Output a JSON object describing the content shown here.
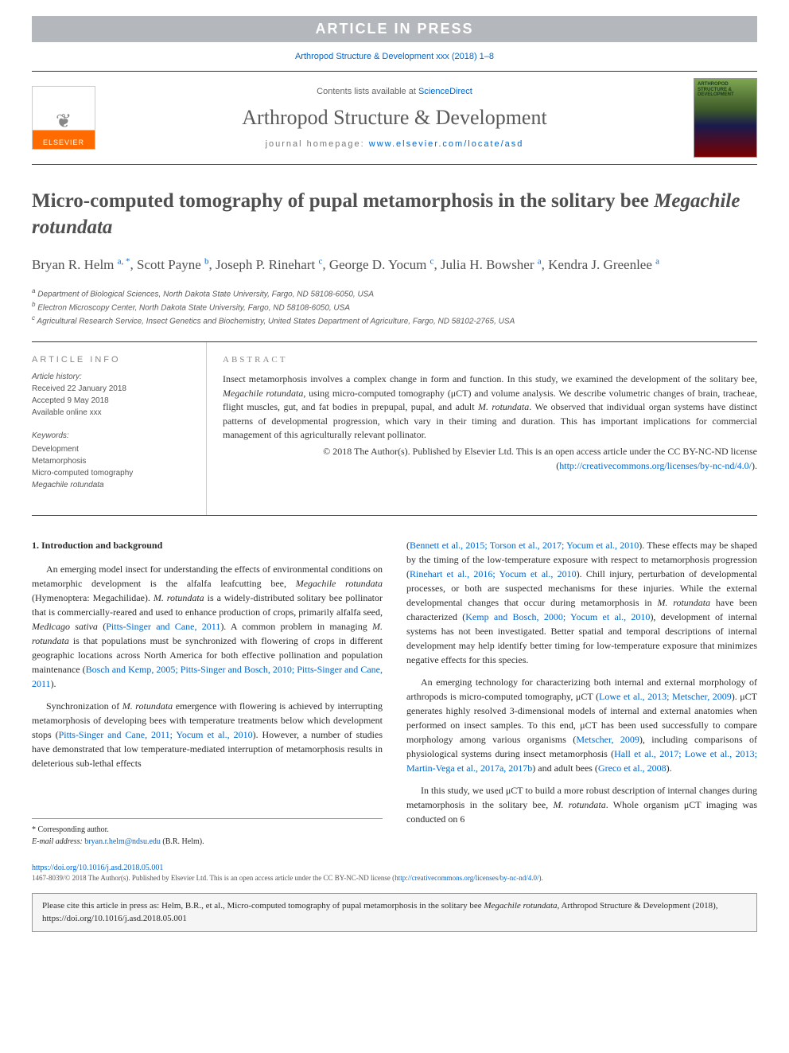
{
  "banner": "ARTICLE IN PRESS",
  "top_citation": {
    "prefix": "Arthropod Structure & Development xxx (2018) 1–8",
    "link_text": "Arthropod Structure & Development xxx (2018) 1–8"
  },
  "header": {
    "contents_prefix": "Contents lists available at ",
    "contents_link": "ScienceDirect",
    "journal": "Arthropod Structure & Development",
    "homepage_prefix": "journal homepage: ",
    "homepage_link": "www.elsevier.com/locate/asd",
    "elsevier_label": "ELSEVIER",
    "cover_label": "ARTHROPOD STRUCTURE & DEVELOPMENT"
  },
  "title": {
    "prefix": "Micro-computed tomography of pupal metamorphosis in the solitary bee ",
    "species": "Megachile rotundata"
  },
  "authors_html": "Bryan R. Helm <sup>a, *</sup>, Scott Payne <sup>b</sup>, Joseph P. Rinehart <sup>c</sup>, George D. Yocum <sup>c</sup>, Julia H. Bowsher <sup>a</sup>, Kendra J. Greenlee <sup>a</sup>",
  "affiliations": [
    {
      "sup": "a",
      "text": "Department of Biological Sciences, North Dakota State University, Fargo, ND 58108-6050, USA"
    },
    {
      "sup": "b",
      "text": "Electron Microscopy Center, North Dakota State University, Fargo, ND 58108-6050, USA"
    },
    {
      "sup": "c",
      "text": "Agricultural Research Service, Insect Genetics and Biochemistry, United States Department of Agriculture, Fargo, ND 58102-2765, USA"
    }
  ],
  "article_info": {
    "heading": "ARTICLE INFO",
    "history_label": "Article history:",
    "history": [
      "Received 22 January 2018",
      "Accepted 9 May 2018",
      "Available online xxx"
    ],
    "keywords_label": "Keywords:",
    "keywords": [
      "Development",
      "Metamorphosis",
      "Micro-computed tomography",
      "Megachile rotundata"
    ]
  },
  "abstract": {
    "heading": "ABSTRACT",
    "body_html": "Insect metamorphosis involves a complex change in form and function. In this study, we examined the development of the solitary bee, <span class=\"species\">Megachile rotundata</span>, using micro-computed tomography (μCT) and volume analysis. We describe volumetric changes of brain, tracheae, flight muscles, gut, and fat bodies in prepupal, pupal, and adult <span class=\"species\">M. rotundata</span>. We observed that individual organ systems have distinct patterns of developmental progression, which vary in their timing and duration. This has important implications for commercial management of this agriculturally relevant pollinator.",
    "copyright": "© 2018 The Author(s). Published by Elsevier Ltd. This is an open access article under the CC BY-NC-ND license (",
    "license_link": "http://creativecommons.org/licenses/by-nc-nd/4.0/",
    "copyright_suffix": ")."
  },
  "body": {
    "section_heading": "1. Introduction and background",
    "col1_paras": [
      "An emerging model insect for understanding the effects of environmental conditions on metamorphic development is the alfalfa leafcutting bee, <span class=\"species\">Megachile rotundata</span> (Hymenoptera: Megachilidae). <span class=\"species\">M. rotundata</span> is a widely-distributed solitary bee pollinator that is commercially-reared and used to enhance production of crops, primarily alfalfa seed, <span class=\"species\">Medicago sativa</span> (<a href=\"#\">Pitts-Singer and Cane, 2011</a>). A common problem in managing <span class=\"species\">M. rotundata</span> is that populations must be synchronized with flowering of crops in different geographic locations across North America for both effective pollination and population maintenance (<a href=\"#\">Bosch and Kemp, 2005; Pitts-Singer and Bosch, 2010; Pitts-Singer and Cane, 2011</a>).",
      "Synchronization of <span class=\"species\">M. rotundata</span> emergence with flowering is achieved by interrupting metamorphosis of developing bees with temperature treatments below which development stops (<a href=\"#\">Pitts-Singer and Cane, 2011; Yocum et al., 2010</a>). However, a number of studies have demonstrated that low temperature-mediated interruption of metamorphosis results in deleterious sub-lethal effects"
    ],
    "col2_paras": [
      "(<a href=\"#\">Bennett et al., 2015; Torson et al., 2017; Yocum et al., 2010</a>). These effects may be shaped by the timing of the low-temperature exposure with respect to metamorphosis progression (<a href=\"#\">Rinehart et al., 2016; Yocum et al., 2010</a>). Chill injury, perturbation of developmental processes, or both are suspected mechanisms for these injuries. While the external developmental changes that occur during metamorphosis in <span class=\"species\">M. rotundata</span> have been characterized (<a href=\"#\">Kemp and Bosch, 2000; Yocum et al., 2010</a>), development of internal systems has not been investigated. Better spatial and temporal descriptions of internal development may help identify better timing for low-temperature exposure that minimizes negative effects for this species.",
      "An emerging technology for characterizing both internal and external morphology of arthropods is micro-computed tomography, μCT (<a href=\"#\">Lowe et al., 2013; Metscher, 2009</a>). μCT generates highly resolved 3-dimensional models of internal and external anatomies when performed on insect samples. To this end, μCT has been used successfully to compare morphology among various organisms (<a href=\"#\">Metscher, 2009</a>), including comparisons of physiological systems during insect metamorphosis (<a href=\"#\">Hall et al., 2017; Lowe et al., 2013; Martin-Vega et al., 2017a, 2017b</a>) and adult bees (<a href=\"#\">Greco et al., 2008</a>).",
      "In this study, we used μCT to build a more robust description of internal changes during metamorphosis in the solitary bee, <span class=\"species\">M. rotundata</span>. Whole organism μCT imaging was conducted on 6"
    ]
  },
  "footnotes": {
    "corr_label": "* Corresponding author.",
    "email_label": "E-mail address: ",
    "email": "bryan.r.helm@ndsu.edu",
    "email_suffix": " (B.R. Helm)."
  },
  "doi": {
    "link": "https://doi.org/10.1016/j.asd.2018.05.001"
  },
  "bottom_copyright": {
    "text": "1467-8039/© 2018 The Author(s). Published by Elsevier Ltd. This is an open access article under the CC BY-NC-ND license (",
    "link": "http://creativecommons.org/licenses/by-nc-nd/4.0/",
    "suffix": ")."
  },
  "cite_box": {
    "text_html": "Please cite this article in press as: Helm, B.R., et al., Micro-computed tomography of pupal metamorphosis in the solitary bee <span class=\"species\">Megachile rotundata</span>, Arthropod Structure & Development (2018), https://doi.org/10.1016/j.asd.2018.05.001"
  },
  "colors": {
    "link": "#0066cc",
    "banner_bg": "#b4b8bc",
    "banner_fg": "#ffffff",
    "text": "#2b2b2b",
    "muted": "#888888"
  }
}
